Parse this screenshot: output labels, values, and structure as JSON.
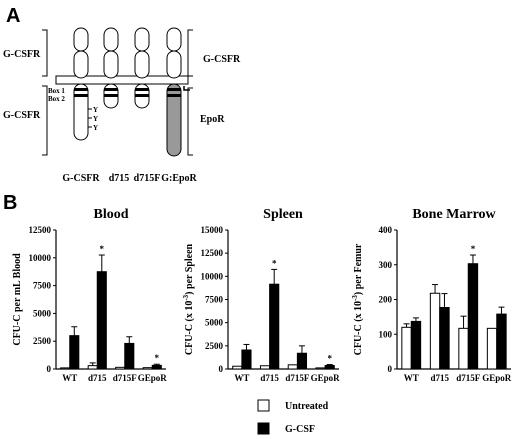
{
  "panel_a": {
    "letter": "A",
    "left_top_label": "G-CSFR",
    "left_bottom_label": "G-CSFR",
    "right_top_label": "G-CSFR",
    "right_bottom_label": "EpoR",
    "box1": "Box 1",
    "box2": "Box 2",
    "tyrosine": "Y",
    "receptor_labels": [
      "G-CSFR",
      "d715",
      "d715F",
      "G:EpoR"
    ]
  },
  "panel_b": {
    "letter": "B"
  },
  "legend": {
    "untreated": "Untreated",
    "gcsf": "G-CSF"
  },
  "colors": {
    "untreated": "#ffffff",
    "gcsf": "#000000",
    "epor_tail": "#999999"
  },
  "chart_data": [
    {
      "type": "bar",
      "title": "Blood",
      "ylabel": "CFU-C per mL Blood",
      "categories": [
        "WT",
        "d715",
        "d715F",
        "GEpoR"
      ],
      "ylim": [
        0,
        12500
      ],
      "yticks": [
        "0",
        "2500",
        "5000",
        "7500",
        "10000",
        "12500"
      ],
      "series": [
        {
          "name": "Untreated",
          "values": [
            100,
            300,
            150,
            120
          ],
          "errors": [
            0,
            250,
            0,
            0
          ]
        },
        {
          "name": "G-CSF",
          "values": [
            3000,
            8750,
            2300,
            330
          ],
          "errors": [
            800,
            1500,
            600,
            100
          ]
        }
      ],
      "annotations": [
        {
          "category": "d715",
          "text": "*"
        },
        {
          "category": "GEpoR",
          "text": "*"
        }
      ]
    },
    {
      "type": "bar",
      "title": "Spleen",
      "ylabel": "CFU-C (x 10-3) per Spleen",
      "categories": [
        "WT",
        "d715",
        "d715F",
        "GEpoR"
      ],
      "ylim": [
        0,
        15000
      ],
      "yticks": [
        "0",
        "2500",
        "5000",
        "7500",
        "10000",
        "12500",
        "15000"
      ],
      "series": [
        {
          "name": "Untreated",
          "values": [
            300,
            350,
            450,
            120
          ],
          "errors": [
            0,
            0,
            0,
            0
          ]
        },
        {
          "name": "G-CSF",
          "values": [
            2050,
            9150,
            1700,
            380
          ],
          "errors": [
            600,
            1600,
            800,
            100
          ]
        }
      ],
      "annotations": [
        {
          "category": "d715",
          "text": "*"
        },
        {
          "category": "GEpoR",
          "text": "*"
        }
      ]
    },
    {
      "type": "bar",
      "title": "Bone Marrow",
      "ylabel": "CFU-C (x 10-3) per Femur",
      "categories": [
        "WT",
        "d715",
        "d715F",
        "GEpoR"
      ],
      "ylim": [
        0,
        400
      ],
      "yticks": [
        "0",
        "100",
        "200",
        "300",
        "400"
      ],
      "series": [
        {
          "name": "Untreated",
          "values": [
            120,
            218,
            117,
            117
          ],
          "errors": [
            10,
            25,
            35,
            0
          ]
        },
        {
          "name": "G-CSF",
          "values": [
            137,
            177,
            303,
            158
          ],
          "errors": [
            10,
            40,
            25,
            20
          ]
        }
      ],
      "annotations": [
        {
          "category": "d715F",
          "text": "*"
        }
      ]
    }
  ]
}
